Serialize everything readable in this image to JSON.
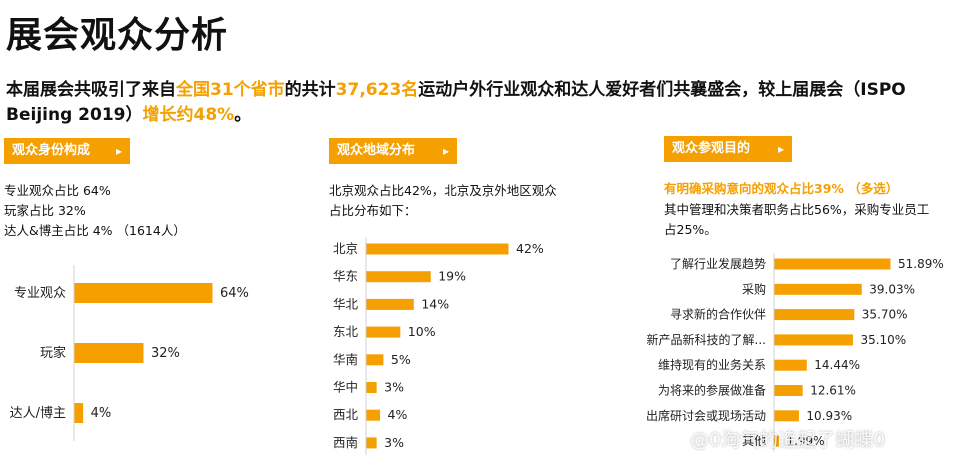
{
  "header": {
    "title": "展会观众分析",
    "intro_parts": [
      {
        "text": "本届展会共吸引了来自",
        "hl": false
      },
      {
        "text": "全国31个省市",
        "hl": true
      },
      {
        "text": "的共计",
        "hl": false
      },
      {
        "text": "37,623名",
        "hl": true
      },
      {
        "text": "运动户外行业观众和达人爱好者们共襄盛会，较上届展会（ISPO Beijing 2019）",
        "hl": false
      },
      {
        "text": "增长约48%",
        "hl": true
      },
      {
        "text": "。",
        "hl": false
      }
    ]
  },
  "panels": {
    "identity": {
      "tag": "观众身份构成",
      "lines": [
        "专业观众占比 64%",
        "玩家占比 32%",
        "达人&博主占比 4% （1614人）"
      ]
    },
    "region": {
      "tag": "观众地域分布",
      "lines": [
        "北京观众占比42%，北京及京外地区观众",
        "占比分布如下："
      ]
    },
    "purpose": {
      "tag": "观众参观目的",
      "highlight": "有明确采购意向的观众占比39% （多选）",
      "lines": [
        "其中管理和决策者职务占比56%，采购专业员工",
        "占25%。"
      ]
    }
  },
  "watermark": "@0淘气的追起了蝴蝶0",
  "chart_data": [
    {
      "type": "bar",
      "orientation": "horizontal",
      "categories": [
        "专业观众",
        "玩家",
        "达人/博主"
      ],
      "values": [
        64,
        32,
        4
      ],
      "value_suffix": "%",
      "color": "#f5a000",
      "xlim": [
        0,
        100
      ]
    },
    {
      "type": "bar",
      "orientation": "horizontal",
      "categories": [
        "北京",
        "华东",
        "华北",
        "东北",
        "华南",
        "华中",
        "西北",
        "西南"
      ],
      "values": [
        42,
        19,
        14,
        10,
        5,
        3,
        4,
        3
      ],
      "value_suffix": "%",
      "color": "#f5a000",
      "xlim": [
        0,
        100
      ]
    },
    {
      "type": "bar",
      "orientation": "horizontal",
      "categories": [
        "了解行业发展趋势",
        "采购",
        "寻求新的合作伙伴",
        "新产品新科技的了解...",
        "维持现有的业务关系",
        "为将来的参展做准备",
        "出席研讨会或现场活动",
        "其他"
      ],
      "values": [
        51.89,
        39.03,
        35.7,
        35.1,
        14.44,
        12.61,
        10.93,
        1.99
      ],
      "value_labels": [
        "51.89%",
        "39.03%",
        "35.70%",
        "35.10%",
        "14.44%",
        "12.61%",
        "10.93%",
        "1.99%"
      ],
      "color": "#f5a000",
      "xlim": [
        0,
        100
      ]
    }
  ]
}
